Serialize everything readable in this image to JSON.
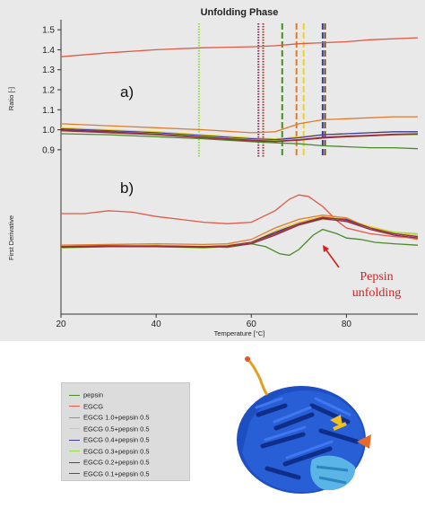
{
  "chart_data": [
    {
      "type": "line",
      "title": "Unfolding Phase",
      "panel_label": "a)",
      "xlabel": "Temperature [°C]",
      "ylabel": "Ratio [-]",
      "xlim": [
        20,
        95
      ],
      "ylim": [
        0.85,
        1.55
      ],
      "xticks": [
        "20",
        "40",
        "60",
        "80"
      ],
      "yticks": [
        "0.9",
        "1.0",
        "1.1",
        "1.2",
        "1.3",
        "1.4",
        "1.5"
      ],
      "grid": false,
      "series": [
        {
          "name": "pepsin",
          "color": "#4a8a2a",
          "x": [
            20,
            30,
            40,
            50,
            60,
            65,
            70,
            75,
            80,
            85,
            90,
            95
          ],
          "y": [
            0.98,
            0.975,
            0.965,
            0.955,
            0.94,
            0.935,
            0.93,
            0.92,
            0.915,
            0.91,
            0.91,
            0.905
          ]
        },
        {
          "name": "EGCG",
          "color": "#e05a47",
          "x": [
            20,
            30,
            40,
            50,
            60,
            65,
            70,
            75,
            80,
            85,
            90,
            95
          ],
          "y": [
            1.365,
            1.385,
            1.4,
            1.41,
            1.415,
            1.42,
            1.43,
            1.435,
            1.44,
            1.45,
            1.455,
            1.46
          ]
        },
        {
          "name": "EGCG 1.0+pepsin 0.5",
          "color": "#e07b2e",
          "x": [
            20,
            30,
            40,
            50,
            60,
            65,
            70,
            75,
            80,
            85,
            90,
            95
          ],
          "y": [
            1.03,
            1.02,
            1.01,
            1.0,
            0.985,
            0.99,
            1.03,
            1.05,
            1.055,
            1.06,
            1.065,
            1.065
          ]
        },
        {
          "name": "EGCG 0.5+pepsin 0.5",
          "color": "#e8d030",
          "x": [
            20,
            30,
            40,
            50,
            60,
            65,
            70,
            75,
            80,
            85,
            90,
            95
          ],
          "y": [
            1.01,
            1.0,
            0.99,
            0.975,
            0.96,
            0.955,
            0.965,
            0.975,
            0.98,
            0.985,
            0.99,
            0.99
          ]
        },
        {
          "name": "EGCG 0.4+pepsin 0.5",
          "color": "#3a3aa0",
          "x": [
            20,
            30,
            40,
            50,
            60,
            65,
            70,
            75,
            80,
            85,
            90,
            95
          ],
          "y": [
            1.005,
            0.995,
            0.985,
            0.97,
            0.955,
            0.95,
            0.96,
            0.975,
            0.98,
            0.985,
            0.99,
            0.99
          ]
        },
        {
          "name": "EGCG 0.3+pepsin 0.5",
          "color": "#8fe03a",
          "x": [
            20,
            30,
            40,
            50,
            60,
            65,
            70,
            75,
            80,
            85,
            90,
            95
          ],
          "y": [
            1.0,
            0.99,
            0.98,
            0.965,
            0.95,
            0.945,
            0.95,
            0.96,
            0.965,
            0.97,
            0.975,
            0.975
          ]
        },
        {
          "name": "EGCG 0.2+pepsin 0.5",
          "color": "#8a2a5a",
          "x": [
            20,
            30,
            40,
            50,
            60,
            65,
            70,
            75,
            80,
            85,
            90,
            95
          ],
          "y": [
            1.0,
            0.99,
            0.978,
            0.962,
            0.948,
            0.942,
            0.95,
            0.962,
            0.968,
            0.972,
            0.978,
            0.98
          ]
        },
        {
          "name": "EGCG 0.1+pepsin 0.5",
          "color": "#a03030",
          "x": [
            20,
            30,
            40,
            50,
            60,
            65,
            70,
            75,
            80,
            85,
            90,
            95
          ],
          "y": [
            0.995,
            0.985,
            0.975,
            0.96,
            0.945,
            0.94,
            0.948,
            0.958,
            0.965,
            0.97,
            0.975,
            0.978
          ]
        }
      ],
      "vlines": [
        {
          "x": 49,
          "color": "#8fe03a",
          "style": "dotted"
        },
        {
          "x": 61.5,
          "color": "#8a2a5a",
          "style": "dotted"
        },
        {
          "x": 62.5,
          "color": "#a03030",
          "style": "dotted"
        },
        {
          "x": 66.5,
          "color": "#4a8a2a",
          "style": "dashed"
        },
        {
          "x": 69.5,
          "color": "#e07b2e",
          "style": "dashed"
        },
        {
          "x": 71,
          "color": "#e8d030",
          "style": "dashed"
        },
        {
          "x": 75,
          "color": "#3a3aa0",
          "style": "dashed"
        },
        {
          "x": 75.5,
          "color": "#6b5020",
          "style": "dashed"
        }
      ]
    },
    {
      "type": "line",
      "panel_label": "b)",
      "xlabel": "Temperature [°C]",
      "ylabel": "First Derivative",
      "xlim": [
        20,
        95
      ],
      "ylim": [
        0,
        1
      ],
      "yticks": [],
      "annotation": [
        "Pepsin",
        "unfolding"
      ],
      "annotation_color": "#d42020",
      "series": [
        {
          "name": "pepsin",
          "color": "#4a8a2a",
          "x": [
            20,
            30,
            40,
            50,
            55,
            60,
            63,
            66,
            68,
            70,
            73,
            75,
            78,
            80,
            83,
            86,
            90,
            95
          ],
          "y": [
            0.47,
            0.48,
            0.475,
            0.47,
            0.465,
            0.49,
            0.47,
            0.42,
            0.41,
            0.45,
            0.55,
            0.59,
            0.56,
            0.53,
            0.52,
            0.5,
            0.49,
            0.48
          ]
        },
        {
          "name": "EGCG",
          "color": "#e05a47",
          "x": [
            20,
            25,
            30,
            35,
            40,
            45,
            50,
            55,
            60,
            65,
            68,
            70,
            72,
            75,
            78,
            80,
            85,
            90,
            95
          ],
          "y": [
            0.7,
            0.7,
            0.72,
            0.71,
            0.68,
            0.66,
            0.64,
            0.63,
            0.64,
            0.72,
            0.8,
            0.83,
            0.82,
            0.75,
            0.65,
            0.6,
            0.56,
            0.54,
            0.53
          ]
        },
        {
          "name": "EGCG 1.0+pepsin 0.5",
          "color": "#e07b2e",
          "x": [
            20,
            30,
            40,
            50,
            55,
            60,
            65,
            70,
            75,
            80,
            85,
            90,
            95
          ],
          "y": [
            0.48,
            0.485,
            0.49,
            0.485,
            0.49,
            0.52,
            0.6,
            0.66,
            0.69,
            0.67,
            0.6,
            0.55,
            0.52
          ]
        },
        {
          "name": "EGCG 0.5+pepsin 0.5",
          "color": "#e8d030",
          "x": [
            20,
            30,
            40,
            50,
            55,
            60,
            65,
            70,
            75,
            80,
            85,
            90,
            95
          ],
          "y": [
            0.47,
            0.475,
            0.48,
            0.47,
            0.48,
            0.5,
            0.58,
            0.64,
            0.68,
            0.66,
            0.61,
            0.57,
            0.55
          ]
        },
        {
          "name": "EGCG 0.4+pepsin 0.5",
          "color": "#3a3aa0",
          "x": [
            20,
            30,
            40,
            50,
            55,
            60,
            65,
            70,
            75,
            80,
            85,
            90,
            95
          ],
          "y": [
            0.47,
            0.47,
            0.475,
            0.47,
            0.475,
            0.5,
            0.57,
            0.63,
            0.67,
            0.66,
            0.6,
            0.56,
            0.54
          ]
        },
        {
          "name": "EGCG 0.3+pepsin 0.5",
          "color": "#8fe03a",
          "x": [
            20,
            30,
            40,
            50,
            55,
            60,
            65,
            70,
            75,
            80,
            85,
            90,
            95
          ],
          "y": [
            0.46,
            0.47,
            0.47,
            0.46,
            0.47,
            0.49,
            0.56,
            0.62,
            0.66,
            0.65,
            0.6,
            0.57,
            0.56
          ]
        },
        {
          "name": "EGCG 0.2+pepsin 0.5",
          "color": "#8a2a5a",
          "x": [
            20,
            30,
            40,
            50,
            55,
            60,
            65,
            70,
            75,
            80,
            85,
            90,
            95
          ],
          "y": [
            0.465,
            0.47,
            0.47,
            0.465,
            0.47,
            0.49,
            0.55,
            0.62,
            0.665,
            0.645,
            0.59,
            0.55,
            0.53
          ]
        },
        {
          "name": "EGCG 0.1+pepsin 0.5",
          "color": "#a03030",
          "x": [
            20,
            30,
            40,
            50,
            55,
            60,
            65,
            70,
            75,
            80,
            85,
            90,
            95
          ],
          "y": [
            0.47,
            0.475,
            0.475,
            0.47,
            0.475,
            0.5,
            0.56,
            0.63,
            0.675,
            0.655,
            0.6,
            0.56,
            0.54
          ]
        }
      ]
    }
  ],
  "legend": [
    {
      "label": "pepsin",
      "color": "#4a8a2a"
    },
    {
      "label": "EGCG",
      "color": "#e05a47"
    },
    {
      "label": "EGCG 1.0+pepsin 0.5",
      "color": "#e07b2e"
    },
    {
      "label": "EGCG 0.5+pepsin 0.5",
      "color": "#e8d030"
    },
    {
      "label": "EGCG 0.4+pepsin 0.5",
      "color": "#3a3aa0"
    },
    {
      "label": "EGCG 0.3+pepsin 0.5",
      "color": "#8fe03a"
    },
    {
      "label": "EGCG 0.2+pepsin 0.5",
      "color": "#8a2a5a"
    },
    {
      "label": "EGCG 0.1+pepsin 0.5",
      "color": "#a03030"
    }
  ],
  "structure_image": {
    "icon": "pepsin-3d-structure-illustration",
    "colors": [
      "#1a4fc4",
      "#4fb0e0",
      "#f0c020",
      "#e05a20"
    ]
  }
}
